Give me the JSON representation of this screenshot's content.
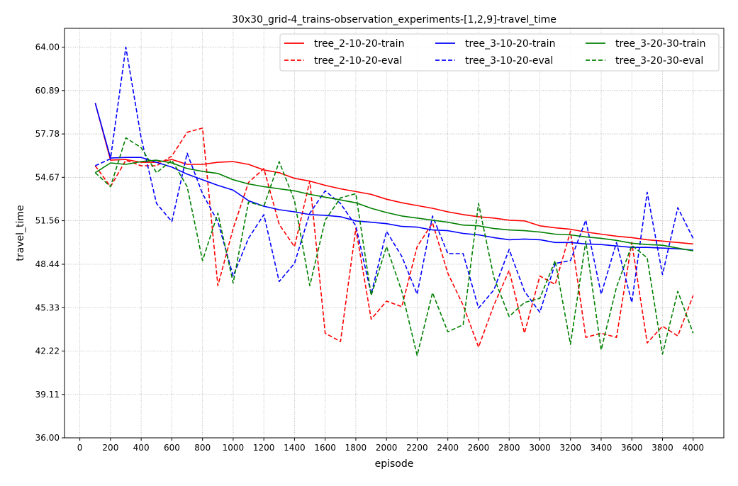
{
  "chart_data": {
    "type": "line",
    "title": "30x30_grid-4_trains-observation_experiments-[1,2,9]-travel_time",
    "xlabel": "episode",
    "ylabel": "travel_time",
    "xlim": [
      -100,
      4200
    ],
    "ylim": [
      36.0,
      65.35
    ],
    "xticks": [
      0,
      200,
      400,
      600,
      800,
      1000,
      1200,
      1400,
      1600,
      1800,
      2000,
      2200,
      2400,
      2600,
      2800,
      3000,
      3200,
      3400,
      3600,
      3800,
      4000
    ],
    "xtick_labels": [
      "0",
      "200",
      "400",
      "600",
      "800",
      "1000",
      "1200",
      "1400",
      "1600",
      "1800",
      "2000",
      "2200",
      "2400",
      "2600",
      "2800",
      "3000",
      "3200",
      "3400",
      "3600",
      "3800",
      "4000"
    ],
    "yticks": [
      36.0,
      39.11,
      42.22,
      45.33,
      48.44,
      51.56,
      54.67,
      57.78,
      60.89,
      64.0
    ],
    "ytick_labels": [
      "36.00",
      "39.11",
      "42.22",
      "45.33",
      "48.44",
      "51.56",
      "54.67",
      "57.78",
      "60.89",
      "64.00"
    ],
    "grid": true,
    "legend_position": "top-right",
    "legend_columns": 3,
    "x": [
      100,
      200,
      300,
      400,
      500,
      600,
      700,
      800,
      900,
      1000,
      1100,
      1200,
      1300,
      1400,
      1500,
      1600,
      1700,
      1800,
      1900,
      2000,
      2100,
      2200,
      2300,
      2400,
      2500,
      2600,
      2700,
      2800,
      2900,
      3000,
      3100,
      3200,
      3300,
      3400,
      3500,
      3600,
      3700,
      3800,
      3900,
      4000
    ],
    "series": [
      {
        "name": "tree_2-10-20-train",
        "color": "#ff0000",
        "dash": "solid",
        "values": [
          60.0,
          55.9,
          55.95,
          55.75,
          55.75,
          55.95,
          55.6,
          55.6,
          55.75,
          55.8,
          55.6,
          55.2,
          55.0,
          54.6,
          54.4,
          54.1,
          53.85,
          53.65,
          53.45,
          53.1,
          52.85,
          52.65,
          52.45,
          52.2,
          52.0,
          51.85,
          51.75,
          51.6,
          51.55,
          51.2,
          51.05,
          50.95,
          50.75,
          50.6,
          50.45,
          50.35,
          50.2,
          50.1,
          50.0,
          49.9
        ]
      },
      {
        "name": "tree_2-10-20-eval",
        "color": "#ff0000",
        "dash": "dashed",
        "values": [
          55.5,
          54.0,
          55.9,
          55.5,
          55.5,
          56.2,
          57.9,
          58.2,
          46.9,
          51.0,
          54.3,
          55.3,
          51.3,
          49.7,
          54.4,
          43.5,
          42.9,
          51.0,
          44.5,
          45.8,
          45.4,
          49.7,
          51.4,
          47.8,
          45.5,
          42.5,
          45.5,
          48.0,
          43.5,
          47.6,
          47.0,
          50.8,
          43.2,
          43.5,
          43.2,
          50.0,
          42.8,
          44.0,
          43.3,
          46.2
        ]
      },
      {
        "name": "tree_3-10-20-train",
        "color": "#0000ff",
        "dash": "solid",
        "values": [
          60.0,
          56.05,
          56.1,
          56.1,
          55.75,
          55.4,
          54.9,
          54.5,
          54.1,
          53.75,
          53.0,
          52.6,
          52.35,
          52.2,
          52.0,
          51.95,
          51.85,
          51.55,
          51.45,
          51.35,
          51.15,
          51.1,
          50.9,
          50.85,
          50.65,
          50.55,
          50.35,
          50.2,
          50.25,
          50.2,
          50.0,
          50.0,
          49.9,
          49.85,
          49.75,
          49.65,
          49.65,
          49.6,
          49.55,
          49.45
        ]
      },
      {
        "name": "tree_3-10-20-eval",
        "color": "#0000ff",
        "dash": "dashed",
        "values": [
          55.5,
          56.0,
          64.0,
          57.5,
          52.8,
          51.5,
          56.4,
          53.5,
          51.5,
          47.6,
          50.3,
          52.0,
          47.2,
          48.5,
          52.1,
          53.7,
          52.8,
          51.2,
          46.3,
          50.8,
          49.0,
          46.3,
          51.9,
          49.2,
          49.2,
          45.3,
          46.6,
          49.5,
          46.5,
          45.0,
          48.5,
          48.7,
          51.6,
          46.3,
          50.0,
          45.7,
          53.6,
          47.7,
          52.5,
          50.3
        ]
      },
      {
        "name": "tree_3-20-30-train",
        "color": "#008000",
        "dash": "solid",
        "values": [
          55.0,
          55.7,
          55.6,
          55.8,
          55.9,
          55.7,
          55.3,
          55.1,
          54.95,
          54.5,
          54.2,
          54.0,
          53.85,
          53.7,
          53.45,
          53.25,
          53.05,
          52.85,
          52.45,
          52.15,
          51.9,
          51.75,
          51.6,
          51.45,
          51.25,
          51.2,
          51.0,
          50.9,
          50.85,
          50.75,
          50.6,
          50.55,
          50.4,
          50.3,
          50.15,
          49.95,
          49.85,
          49.8,
          49.6,
          49.4
        ]
      },
      {
        "name": "tree_3-20-30-eval",
        "color": "#008000",
        "dash": "dashed",
        "values": [
          55.0,
          54.0,
          57.5,
          56.8,
          55.0,
          55.9,
          54.0,
          48.7,
          52.1,
          47.1,
          52.9,
          52.6,
          55.8,
          53.0,
          46.9,
          51.6,
          53.2,
          53.5,
          46.2,
          49.7,
          46.5,
          41.9,
          46.4,
          43.6,
          44.1,
          52.8,
          47.5,
          44.7,
          45.7,
          46.0,
          48.7,
          42.7,
          50.1,
          42.3,
          46.8,
          49.8,
          48.9,
          42.0,
          46.5,
          43.5
        ]
      }
    ]
  }
}
